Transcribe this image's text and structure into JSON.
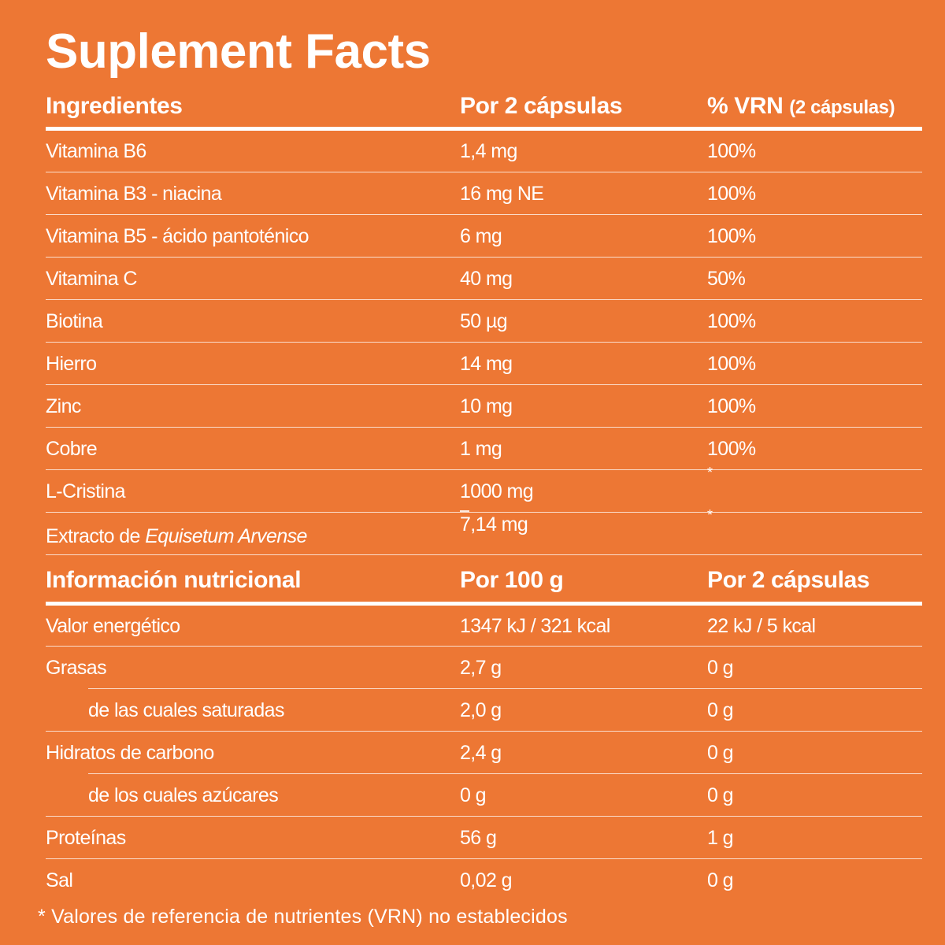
{
  "title": "Suplement Facts",
  "supplement": {
    "headers": {
      "ingredient": "Ingredientes",
      "amount": "Por 2 cápsulas",
      "vrn": "% VRN",
      "vrn_note": "(2 cápsulas)"
    },
    "rows": [
      {
        "name": "Vitamina B6",
        "amount": "1,4 mg",
        "vrn": "100%"
      },
      {
        "name": "Vitamina B3 - niacina",
        "amount": "16 mg NE",
        "vrn": "100%"
      },
      {
        "name": "Vitamina B5 - ácido pantoténico",
        "amount": "6 mg",
        "vrn": "100%"
      },
      {
        "name": "Vitamina C",
        "amount": "40 mg",
        "vrn": "50%"
      },
      {
        "name": "Biotina",
        "amount": "50 µg",
        "vrn": "100%"
      },
      {
        "name": "Hierro",
        "amount": "14 mg",
        "vrn": "100%"
      },
      {
        "name": "Zinc",
        "amount": "10 mg",
        "vrn": "100%"
      },
      {
        "name": "Cobre",
        "amount": "1 mg",
        "vrn": "100%"
      },
      {
        "name": "L-Cristina",
        "amount": "1000 mg",
        "vrn": "*"
      },
      {
        "name_prefix": "Extracto de ",
        "name_italic": "Equisetum Arvense",
        "amount": "7,14 mg",
        "vrn": "*"
      }
    ]
  },
  "nutrition": {
    "headers": {
      "name": "Información nutricional",
      "per100": "Por 100 g",
      "per2": "Por 2 cápsulas"
    },
    "rows": [
      {
        "name": "Valor energético",
        "per100": "1347 kJ / 321 kcal",
        "per2": "22 kJ / 5 kcal"
      },
      {
        "name": "Grasas",
        "per100": "2,7 g",
        "per2": "0 g"
      },
      {
        "name": "de las cuales saturadas",
        "per100": "2,0 g",
        "per2": "0 g",
        "indent": true
      },
      {
        "name": "Hidratos de carbono",
        "per100": "2,4 g",
        "per2": "0 g"
      },
      {
        "name": "de los cuales azúcares",
        "per100": "0 g",
        "per2": "0 g",
        "indent": true
      },
      {
        "name": "Proteínas",
        "per100": "56 g",
        "per2": "1 g"
      },
      {
        "name": "Sal",
        "per100": "0,02 g",
        "per2": "0 g"
      }
    ]
  },
  "footnote": "* Valores de referencia de nutrientes (VRN) no establecidos",
  "colors": {
    "background": "#ED7734",
    "text": "#FFFFFF"
  }
}
